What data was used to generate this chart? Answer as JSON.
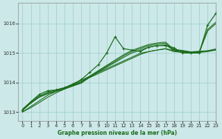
{
  "title": "Graphe pression niveau de la mer (hPa)",
  "bg_color": "#cce8e8",
  "grid_color": "#99cccc",
  "line_color": "#1a6b1a",
  "xlim": [
    -0.5,
    23
  ],
  "ylim": [
    1012.7,
    1016.7
  ],
  "yticks": [
    1013,
    1014,
    1015,
    1016
  ],
  "xticks": [
    0,
    1,
    2,
    3,
    4,
    5,
    6,
    7,
    8,
    9,
    10,
    11,
    12,
    13,
    14,
    15,
    16,
    17,
    18,
    19,
    20,
    21,
    22,
    23
  ],
  "line_volatile": [
    1013.05,
    1013.35,
    1013.6,
    1013.72,
    1013.75,
    1013.82,
    1013.95,
    1014.1,
    1014.35,
    1014.6,
    1015.0,
    1015.55,
    1015.15,
    1015.1,
    1015.05,
    1015.2,
    1015.25,
    1015.25,
    1015.18,
    1015.0,
    1015.0,
    1015.0,
    1015.95,
    1016.35
  ],
  "line_smooth1": [
    1013.05,
    1013.3,
    1013.5,
    1013.62,
    1013.7,
    1013.78,
    1013.88,
    1013.98,
    1014.18,
    1014.35,
    1014.52,
    1014.68,
    1014.85,
    1015.0,
    1015.1,
    1015.2,
    1015.25,
    1015.28,
    1015.08,
    1015.05,
    1015.0,
    1015.02,
    1015.05,
    1015.1
  ],
  "line_smooth2": [
    1013.08,
    1013.32,
    1013.52,
    1013.64,
    1013.72,
    1013.8,
    1013.9,
    1014.0,
    1014.2,
    1014.38,
    1014.55,
    1014.72,
    1014.9,
    1015.05,
    1015.15,
    1015.25,
    1015.3,
    1015.33,
    1015.1,
    1015.07,
    1015.02,
    1015.04,
    1015.06,
    1015.12
  ],
  "line_smooth3": [
    1013.1,
    1013.35,
    1013.55,
    1013.67,
    1013.75,
    1013.83,
    1013.93,
    1014.03,
    1014.22,
    1014.4,
    1014.58,
    1014.76,
    1014.94,
    1015.09,
    1015.19,
    1015.29,
    1015.34,
    1015.37,
    1015.12,
    1015.09,
    1015.04,
    1015.06,
    1015.08,
    1015.14
  ],
  "line_linear1": [
    1013.0,
    1013.19,
    1013.38,
    1013.57,
    1013.7,
    1013.82,
    1013.95,
    1014.08,
    1014.21,
    1014.34,
    1014.47,
    1014.6,
    1014.73,
    1014.86,
    1014.99,
    1015.05,
    1015.1,
    1015.15,
    1015.08,
    1015.05,
    1015.02,
    1015.04,
    1015.8,
    1016.05
  ],
  "line_linear2": [
    1013.0,
    1013.15,
    1013.32,
    1013.5,
    1013.65,
    1013.78,
    1013.91,
    1014.04,
    1014.17,
    1014.3,
    1014.43,
    1014.56,
    1014.69,
    1014.82,
    1014.95,
    1015.05,
    1015.1,
    1015.14,
    1015.05,
    1015.02,
    1014.99,
    1015.01,
    1015.75,
    1016.0
  ]
}
